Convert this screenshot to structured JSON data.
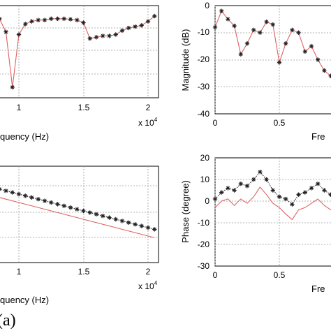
{
  "caption": "(a)",
  "colors": {
    "series_line": "#e06060",
    "marker": "#222222",
    "grid": "#9a9a9a",
    "axes": "#000000"
  },
  "chart_data": [
    {
      "type": "line",
      "position": "top-left",
      "xlabel": "quency (Hz)",
      "ylabel": "",
      "x_multiplier": "x 10",
      "x_multiplier_exp": "4",
      "xticks": [
        "1",
        "1.5",
        "2"
      ],
      "yticks": [],
      "grid": true,
      "series": [
        {
          "marker": "*",
          "x": [
            7000,
            8500,
            9000,
            9500,
            10000,
            10500,
            11000,
            11500,
            12000,
            12500,
            13000,
            13500,
            14000,
            14500,
            15000,
            15500,
            16000,
            16500,
            17000,
            17500,
            18000,
            18500,
            19000,
            19500,
            20000,
            20500
          ],
          "y": [
            -3,
            -5,
            -10,
            -31,
            -11,
            -7,
            -6,
            -5.5,
            -5.5,
            -5,
            -5,
            -5,
            -5.2,
            -5.5,
            -6.5,
            -12.5,
            -12,
            -11.5,
            -11.5,
            -11,
            -9.5,
            -8.5,
            -8,
            -7.5,
            -6,
            -4
          ]
        }
      ]
    },
    {
      "type": "line",
      "position": "top-right",
      "xlabel": "Fre",
      "ylabel": "Magnitude (dB)",
      "xticks": [
        "0",
        "0.5"
      ],
      "yticks": [
        "0",
        "-10",
        "-20",
        "-30",
        "-40"
      ],
      "ylim": [
        -40,
        0
      ],
      "grid": true,
      "series": [
        {
          "marker": "*",
          "x": [
            0,
            0.05,
            0.1,
            0.15,
            0.2,
            0.25,
            0.3,
            0.35,
            0.4,
            0.45,
            0.5,
            0.55,
            0.6,
            0.65,
            0.7,
            0.75,
            0.8,
            0.85,
            0.9,
            0.95,
            1.0
          ],
          "y": [
            -8,
            -2,
            -5,
            -7.5,
            -18,
            -14,
            -9,
            -10,
            -6,
            -7,
            -21,
            -14,
            -9,
            -10,
            -17,
            -15,
            -20,
            -24,
            -26,
            -27,
            -28
          ]
        }
      ]
    },
    {
      "type": "line",
      "position": "bottom-left",
      "xlabel": "quency (Hz)",
      "ylabel": "",
      "x_multiplier": "x 10",
      "x_multiplier_exp": "4",
      "xticks": [
        "1",
        "1.5",
        "2"
      ],
      "yticks": [],
      "grid": true,
      "series": [
        {
          "marker": "*",
          "x": [
            7500,
            8000,
            8500,
            9000,
            9500,
            10000,
            10500,
            11000,
            11500,
            12000,
            12500,
            13000,
            13500,
            14000,
            14500,
            15000,
            15500,
            16000,
            16500,
            17000,
            17500,
            18000,
            18500,
            19000,
            19500,
            20000,
            20500
          ],
          "y": [
            0,
            -0.5,
            -1,
            -1.5,
            -2,
            -2.5,
            -3,
            -3.5,
            -4,
            -4.5,
            -5,
            -5.5,
            -6,
            -6.5,
            -7,
            -7.5,
            -8,
            -8.5,
            -9,
            -9.5,
            -10,
            -10.5,
            -11,
            -11.5,
            -12,
            -12.5,
            -13
          ]
        },
        {
          "marker": "none",
          "x": [
            7500,
            10000,
            12500,
            15000,
            17500,
            20500
          ],
          "y": [
            -2.5,
            -5,
            -7.5,
            -10,
            -12.5,
            -15.5
          ]
        }
      ]
    },
    {
      "type": "line",
      "position": "bottom-right",
      "xlabel": "Fre",
      "ylabel": "Phase (degree)",
      "xticks": [
        "0",
        "0.5"
      ],
      "yticks": [
        "20",
        "10",
        "0",
        "-10",
        "-20",
        "-30"
      ],
      "ylim": [
        -30,
        20
      ],
      "grid": true,
      "series": [
        {
          "marker": "*",
          "x": [
            0,
            0.05,
            0.1,
            0.15,
            0.2,
            0.25,
            0.3,
            0.35,
            0.4,
            0.45,
            0.5,
            0.55,
            0.6,
            0.65,
            0.7,
            0.75,
            0.8,
            0.85,
            0.9,
            0.95,
            1.0
          ],
          "y": [
            1,
            4,
            6,
            5,
            8,
            7,
            10,
            13.5,
            10,
            5,
            2,
            1,
            -1.5,
            3,
            4,
            6,
            8,
            5,
            3,
            2,
            1
          ]
        },
        {
          "marker": "none",
          "x": [
            0,
            0.05,
            0.1,
            0.15,
            0.2,
            0.25,
            0.3,
            0.35,
            0.4,
            0.45,
            0.5,
            0.55,
            0.6,
            0.65,
            0.7,
            0.75,
            0.8,
            0.85,
            0.9,
            0.95,
            1.0
          ],
          "y": [
            -3,
            0,
            1,
            -2,
            1,
            -1,
            2,
            6.5,
            3,
            -1,
            -3,
            -6,
            -8.5,
            -4,
            -3,
            -1,
            1,
            -2,
            -4,
            -5,
            -6
          ]
        }
      ]
    }
  ]
}
